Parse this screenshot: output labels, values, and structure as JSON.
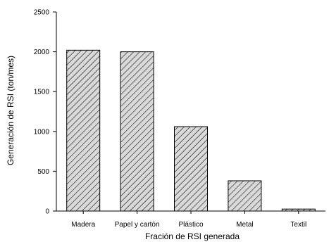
{
  "chart_data": {
    "type": "bar",
    "categories": [
      "Madera",
      "Papel y cartón",
      "Plástico",
      "Metal",
      "Textil"
    ],
    "values": [
      2020,
      2000,
      1060,
      380,
      25
    ],
    "title": "",
    "xlabel": "Fración de RSI generada",
    "ylabel": "Generación de RSI (ton/mes)",
    "ylim": [
      0,
      2500
    ],
    "yticks": [
      0,
      500,
      1000,
      1500,
      2000,
      2500
    ],
    "grid": false,
    "bar_fill": "#d9d9d9",
    "bar_hatch": "diagonal-lines",
    "hatch_color": "#000000"
  }
}
